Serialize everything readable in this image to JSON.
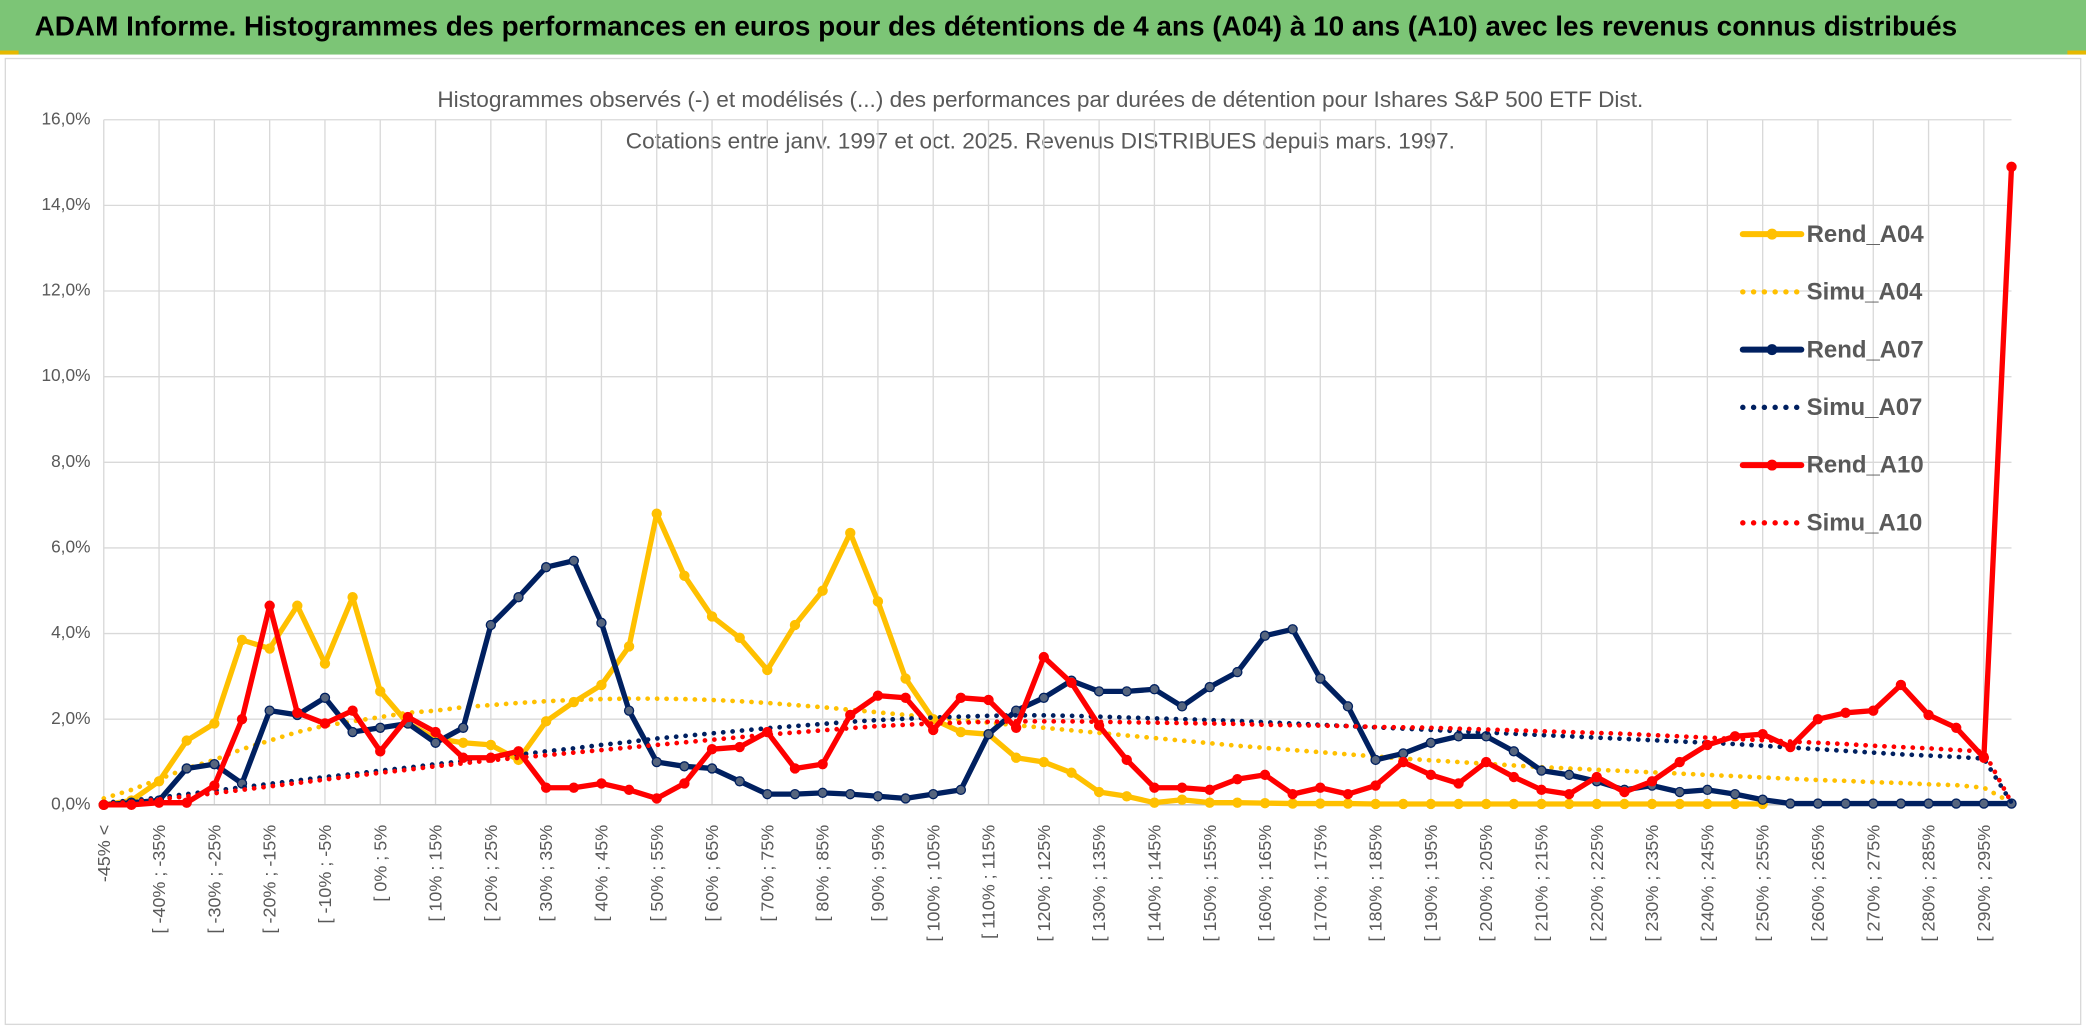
{
  "header": {
    "title": "ADAM Informe. Histogrammes des performances en euros pour des détentions de 4 ans (A04) à 10 ans (A10) avec les revenus connus distribués"
  },
  "chart_data": {
    "type": "line",
    "title": "Histogrammes observés (-) et modélisés (...) des performances par durées de détention pour Ishares S&P 500 ETF Dist.",
    "subtitle": "Cotations entre janv. 1997 et oct. 2025. Revenus DISTRIBUES depuis mars. 1997.",
    "categories": [
      "-45% <",
      null,
      "[ -40% ; -35%",
      null,
      "[ -30% ; -25%",
      null,
      "[ -20% ; -15%",
      null,
      "[ -10% ; -5%",
      null,
      "[ 0% ; 5%",
      null,
      "[ 10% ; 15%",
      null,
      "[ 20% ; 25%",
      null,
      "[ 30% ; 35%",
      null,
      "[ 40% ; 45%",
      null,
      "[ 50% ; 55%",
      null,
      "[ 60% ; 65%",
      null,
      "[ 70% ; 75%",
      null,
      "[ 80% ; 85%",
      null,
      "[ 90% ; 95%",
      null,
      "[ 100% ; 105%",
      null,
      "[ 110% ; 115%",
      null,
      "[ 120% ; 125%",
      null,
      "[ 130% ; 135%",
      null,
      "[ 140% ; 145%",
      null,
      "[ 150% ; 155%",
      null,
      "[ 160% ; 165%",
      null,
      "[ 170% ; 175%",
      null,
      "[ 180% ; 185%",
      null,
      "[ 190% ; 195%",
      null,
      "[ 200% ; 205%",
      null,
      "[ 210% ; 215%",
      null,
      "[ 220% ; 225%",
      null,
      "[ 230% ; 235%",
      null,
      "[ 240% ; 245%",
      null,
      "[ 250% ; 255%",
      null,
      "[ 260% ; 265%",
      null,
      "[ 270% ; 275%",
      null,
      "[ 280% ; 285%",
      null,
      "[ 290% ; 295%",
      null
    ],
    "ylim": [
      0,
      16
    ],
    "yticks": [
      {
        "value": 0,
        "label": "0,0%"
      },
      {
        "value": 2,
        "label": "2,0%"
      },
      {
        "value": 4,
        "label": "4,0%"
      },
      {
        "value": 6,
        "label": "6,0%"
      },
      {
        "value": 8,
        "label": "8,0%"
      },
      {
        "value": 10,
        "label": "10,0%"
      },
      {
        "value": 12,
        "label": "12,0%"
      },
      {
        "value": 14,
        "label": "14,0%"
      },
      {
        "value": 16,
        "label": "16,0%"
      }
    ],
    "grid": true,
    "legend": "right",
    "series": [
      {
        "name": "Rend_A04",
        "color": "#ffc000",
        "style": "solid",
        "values": [
          0,
          0.1,
          0.55,
          1.5,
          1.9,
          3.85,
          3.65,
          4.65,
          3.3,
          4.85,
          2.65,
          1.9,
          1.55,
          1.45,
          1.4,
          1.05,
          1.95,
          2.4,
          2.8,
          3.7,
          6.8,
          5.35,
          4.4,
          3.9,
          3.15,
          4.2,
          5.0,
          6.35,
          4.75,
          2.95,
          2.0,
          1.7,
          1.65,
          1.1,
          1.0,
          0.75,
          0.3,
          0.2,
          0.05,
          0.12,
          0.05,
          0.05,
          0.04,
          0.03,
          0.03,
          0.03,
          0.02,
          0.02,
          0.02,
          0.02,
          0.02,
          0.02,
          0.02,
          0.02,
          0.02,
          0.02,
          0.02,
          0.02,
          0.02,
          0.02,
          0.02,
          null,
          null,
          null,
          null,
          null,
          null,
          null,
          null,
          null
        ]
      },
      {
        "name": "Simu_A04",
        "color": "#ffc000",
        "style": "dotted",
        "values": [
          0.15,
          0.35,
          0.6,
          0.85,
          1.05,
          1.3,
          1.5,
          1.7,
          1.85,
          1.95,
          2.05,
          2.15,
          2.2,
          2.28,
          2.33,
          2.38,
          2.42,
          2.45,
          2.47,
          2.48,
          2.48,
          2.47,
          2.45,
          2.42,
          2.38,
          2.33,
          2.28,
          2.22,
          2.16,
          2.1,
          2.04,
          1.98,
          1.92,
          1.86,
          1.8,
          1.74,
          1.68,
          1.62,
          1.56,
          1.5,
          1.44,
          1.38,
          1.33,
          1.28,
          1.23,
          1.18,
          1.13,
          1.08,
          1.04,
          1.0,
          0.96,
          0.92,
          0.88,
          0.85,
          0.82,
          0.79,
          0.76,
          0.73,
          0.7,
          0.67,
          0.64,
          0.61,
          0.58,
          0.56,
          0.53,
          0.51,
          0.48,
          0.46,
          0.4,
          0.05
        ]
      },
      {
        "name": "Rend_A07",
        "color": "#002060",
        "style": "solid",
        "values": [
          0,
          0.05,
          0.1,
          0.85,
          0.95,
          0.5,
          2.2,
          2.1,
          2.5,
          1.7,
          1.8,
          1.9,
          1.45,
          1.8,
          4.2,
          4.85,
          5.55,
          5.7,
          4.25,
          2.2,
          1.0,
          0.9,
          0.85,
          0.55,
          0.25,
          0.25,
          0.28,
          0.25,
          0.2,
          0.15,
          0.25,
          0.35,
          1.65,
          2.2,
          2.5,
          2.9,
          2.65,
          2.65,
          2.7,
          2.3,
          2.75,
          3.1,
          3.95,
          4.1,
          2.95,
          2.3,
          1.05,
          1.2,
          1.45,
          1.6,
          1.6,
          1.25,
          0.8,
          0.7,
          0.55,
          0.35,
          0.45,
          0.3,
          0.35,
          0.25,
          0.12,
          0.03,
          0.03,
          0.03,
          0.03,
          0.03,
          0.03,
          0.03,
          0.03,
          0.03
        ]
      },
      {
        "name": "Simu_A07",
        "color": "#002060",
        "style": "dotted",
        "values": [
          0.05,
          0.1,
          0.17,
          0.25,
          0.33,
          0.41,
          0.49,
          0.57,
          0.65,
          0.72,
          0.8,
          0.87,
          0.95,
          1.02,
          1.1,
          1.17,
          1.25,
          1.32,
          1.4,
          1.47,
          1.55,
          1.61,
          1.67,
          1.73,
          1.79,
          1.84,
          1.89,
          1.94,
          1.98,
          2.01,
          2.04,
          2.06,
          2.08,
          2.09,
          2.09,
          2.08,
          2.06,
          2.04,
          2.02,
          2.0,
          1.98,
          1.96,
          1.93,
          1.9,
          1.87,
          1.84,
          1.81,
          1.78,
          1.75,
          1.72,
          1.69,
          1.66,
          1.63,
          1.6,
          1.57,
          1.54,
          1.51,
          1.48,
          1.45,
          1.42,
          1.38,
          1.34,
          1.3,
          1.26,
          1.22,
          1.18,
          1.15,
          1.12,
          1.08,
          0.05
        ]
      },
      {
        "name": "Rend_A10",
        "color": "#ff0000",
        "style": "solid",
        "values": [
          0,
          0,
          0.05,
          0.05,
          0.45,
          2.0,
          4.65,
          2.15,
          1.9,
          2.2,
          1.25,
          2.05,
          1.7,
          1.1,
          1.1,
          1.25,
          0.4,
          0.4,
          0.5,
          0.35,
          0.15,
          0.5,
          1.3,
          1.35,
          1.7,
          0.85,
          0.95,
          2.1,
          2.55,
          2.5,
          1.75,
          2.5,
          2.45,
          1.8,
          3.45,
          2.85,
          1.85,
          1.05,
          0.4,
          0.4,
          0.35,
          0.6,
          0.7,
          0.25,
          0.4,
          0.25,
          0.45,
          1.0,
          0.7,
          0.5,
          1.0,
          0.65,
          0.35,
          0.25,
          0.65,
          0.3,
          0.55,
          1.0,
          1.4,
          1.6,
          1.65,
          1.35,
          2.0,
          2.15,
          2.2,
          2.8,
          2.1,
          1.8,
          1.1,
          14.9
        ]
      },
      {
        "name": "Simu_A10",
        "color": "#ff0000",
        "style": "dotted",
        "values": [
          0.02,
          0.07,
          0.13,
          0.2,
          0.27,
          0.35,
          0.43,
          0.51,
          0.59,
          0.67,
          0.75,
          0.82,
          0.9,
          0.97,
          1.04,
          1.1,
          1.16,
          1.22,
          1.28,
          1.34,
          1.4,
          1.46,
          1.52,
          1.58,
          1.64,
          1.69,
          1.74,
          1.79,
          1.84,
          1.87,
          1.9,
          1.92,
          1.94,
          1.95,
          1.95,
          1.95,
          1.94,
          1.93,
          1.92,
          1.91,
          1.9,
          1.89,
          1.87,
          1.86,
          1.85,
          1.84,
          1.82,
          1.81,
          1.8,
          1.78,
          1.76,
          1.74,
          1.72,
          1.7,
          1.68,
          1.66,
          1.63,
          1.6,
          1.57,
          1.54,
          1.51,
          1.48,
          1.45,
          1.42,
          1.38,
          1.35,
          1.32,
          1.28,
          1.25,
          0.05
        ]
      }
    ]
  }
}
